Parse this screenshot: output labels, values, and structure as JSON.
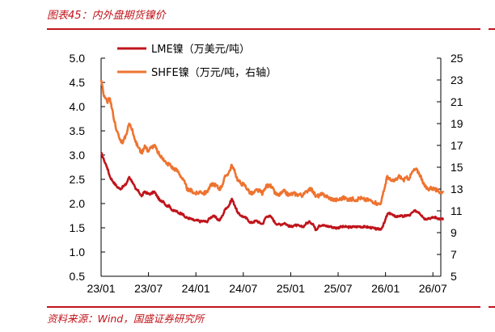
{
  "header": {
    "title": "图表45：内外盘期货镍价"
  },
  "footer": {
    "source": "资料来源：Wind，国盛证券研究所"
  },
  "colors": {
    "accent": "#c0141b",
    "lme": "#c0141b",
    "shfe": "#ee7330"
  },
  "chart_data": {
    "type": "line",
    "x_ticks": [
      "23/01",
      "23/07",
      "24/01",
      "24/07",
      "25/01",
      "25/07",
      "26/01",
      "26/07"
    ],
    "x_range": [
      "23/01",
      "26/08"
    ],
    "ylim_left": [
      0.5,
      5.0
    ],
    "yticks_left": [
      "5.0",
      "4.5",
      "4.0",
      "3.5",
      "3.0",
      "2.5",
      "2.0",
      "1.5",
      "1.0",
      "0.5"
    ],
    "ylim_right": [
      5,
      25
    ],
    "yticks_right": [
      "25",
      "23",
      "21",
      "19",
      "17",
      "15",
      "13",
      "11",
      "9",
      "7",
      "5"
    ],
    "grid": false,
    "legend_position": "top-left",
    "series": [
      {
        "name": "LME镍（万美元/吨）",
        "axis": "left",
        "color": "#c0141b",
        "points": [
          [
            "2023-01-01",
            3.05
          ],
          [
            "2023-01-12",
            2.9
          ],
          [
            "2023-01-24",
            2.75
          ],
          [
            "2023-02-05",
            2.55
          ],
          [
            "2023-02-17",
            2.45
          ],
          [
            "2023-03-01",
            2.35
          ],
          [
            "2023-03-13",
            2.3
          ],
          [
            "2023-03-25",
            2.35
          ],
          [
            "2023-04-06",
            2.4
          ],
          [
            "2023-04-18",
            2.55
          ],
          [
            "2023-04-30",
            2.45
          ],
          [
            "2023-05-12",
            2.3
          ],
          [
            "2023-05-24",
            2.25
          ],
          [
            "2023-06-05",
            2.15
          ],
          [
            "2023-06-17",
            2.25
          ],
          [
            "2023-06-29",
            2.2
          ],
          [
            "2023-07-11",
            2.2
          ],
          [
            "2023-07-23",
            2.25
          ],
          [
            "2023-08-04",
            2.15
          ],
          [
            "2023-08-16",
            2.05
          ],
          [
            "2023-08-28",
            2.05
          ],
          [
            "2023-09-09",
            1.95
          ],
          [
            "2023-09-21",
            1.95
          ],
          [
            "2023-10-03",
            1.85
          ],
          [
            "2023-10-15",
            1.85
          ],
          [
            "2023-10-27",
            1.8
          ],
          [
            "2023-11-08",
            1.8
          ],
          [
            "2023-11-20",
            1.72
          ],
          [
            "2023-12-02",
            1.7
          ],
          [
            "2023-12-14",
            1.68
          ],
          [
            "2023-12-26",
            1.65
          ],
          [
            "2024-01-07",
            1.65
          ],
          [
            "2024-01-19",
            1.63
          ],
          [
            "2024-01-31",
            1.64
          ],
          [
            "2024-02-12",
            1.62
          ],
          [
            "2024-02-24",
            1.7
          ],
          [
            "2024-03-07",
            1.75
          ],
          [
            "2024-03-19",
            1.7
          ],
          [
            "2024-03-31",
            1.65
          ],
          [
            "2024-04-12",
            1.75
          ],
          [
            "2024-04-24",
            1.9
          ],
          [
            "2024-05-06",
            1.95
          ],
          [
            "2024-05-18",
            2.1
          ],
          [
            "2024-05-30",
            1.95
          ],
          [
            "2024-06-11",
            1.8
          ],
          [
            "2024-06-23",
            1.75
          ],
          [
            "2024-07-05",
            1.72
          ],
          [
            "2024-07-17",
            1.68
          ],
          [
            "2024-07-29",
            1.6
          ],
          [
            "2024-08-10",
            1.62
          ],
          [
            "2024-08-22",
            1.65
          ],
          [
            "2024-09-03",
            1.6
          ],
          [
            "2024-09-15",
            1.58
          ],
          [
            "2024-09-27",
            1.72
          ],
          [
            "2024-10-09",
            1.75
          ],
          [
            "2024-10-21",
            1.7
          ],
          [
            "2024-11-02",
            1.6
          ],
          [
            "2024-11-14",
            1.57
          ],
          [
            "2024-11-26",
            1.57
          ],
          [
            "2024-12-08",
            1.6
          ],
          [
            "2024-12-20",
            1.55
          ],
          [
            "2025-01-01",
            1.52
          ],
          [
            "2025-01-13",
            1.55
          ],
          [
            "2025-01-25",
            1.55
          ],
          [
            "2025-02-06",
            1.53
          ],
          [
            "2025-02-18",
            1.52
          ],
          [
            "2025-03-02",
            1.6
          ],
          [
            "2025-03-14",
            1.62
          ],
          [
            "2025-03-26",
            1.58
          ],
          [
            "2025-04-07",
            1.45
          ],
          [
            "2025-04-19",
            1.55
          ],
          [
            "2025-05-01",
            1.55
          ],
          [
            "2025-05-13",
            1.54
          ],
          [
            "2025-05-25",
            1.53
          ],
          [
            "2025-06-06",
            1.52
          ],
          [
            "2025-06-18",
            1.5
          ],
          [
            "2025-06-30",
            1.5
          ],
          [
            "2025-07-12",
            1.52
          ],
          [
            "2025-07-24",
            1.52
          ],
          [
            "2025-08-05",
            1.52
          ],
          [
            "2025-08-17",
            1.51
          ],
          [
            "2025-08-29",
            1.52
          ],
          [
            "2025-09-10",
            1.52
          ],
          [
            "2025-09-22",
            1.53
          ],
          [
            "2025-10-04",
            1.52
          ],
          [
            "2025-10-16",
            1.52
          ],
          [
            "2025-10-28",
            1.51
          ],
          [
            "2025-11-09",
            1.5
          ],
          [
            "2025-11-21",
            1.48
          ],
          [
            "2025-12-03",
            1.47
          ],
          [
            "2025-12-15",
            1.48
          ],
          [
            "2025-12-27",
            1.6
          ],
          [
            "2026-01-08",
            1.78
          ],
          [
            "2026-01-20",
            1.8
          ],
          [
            "2026-02-01",
            1.75
          ],
          [
            "2026-02-13",
            1.73
          ],
          [
            "2026-02-25",
            1.75
          ],
          [
            "2026-03-09",
            1.73
          ],
          [
            "2026-03-21",
            1.76
          ],
          [
            "2026-04-02",
            1.75
          ],
          [
            "2026-04-14",
            1.82
          ],
          [
            "2026-04-26",
            1.85
          ],
          [
            "2026-05-08",
            1.82
          ],
          [
            "2026-05-20",
            1.75
          ],
          [
            "2026-06-01",
            1.68
          ],
          [
            "2026-06-13",
            1.7
          ],
          [
            "2026-06-25",
            1.7
          ],
          [
            "2026-07-07",
            1.72
          ],
          [
            "2026-07-19",
            1.7
          ],
          [
            "2026-07-31",
            1.68
          ],
          [
            "2026-08-12",
            1.68
          ]
        ]
      },
      {
        "name": "SHFE镍（万元/吨，右轴）",
        "axis": "right",
        "color": "#ee7330",
        "points": [
          [
            "2023-01-01",
            23.0
          ],
          [
            "2023-01-12",
            21.5
          ],
          [
            "2023-01-24",
            21.0
          ],
          [
            "2023-02-05",
            21.3
          ],
          [
            "2023-02-17",
            19.8
          ],
          [
            "2023-03-01",
            18.3
          ],
          [
            "2023-03-13",
            17.5
          ],
          [
            "2023-03-25",
            17.3
          ],
          [
            "2023-04-06",
            18.0
          ],
          [
            "2023-04-18",
            19.0
          ],
          [
            "2023-04-30",
            18.5
          ],
          [
            "2023-05-12",
            17.3
          ],
          [
            "2023-05-24",
            16.8
          ],
          [
            "2023-06-05",
            16.3
          ],
          [
            "2023-06-17",
            17.0
          ],
          [
            "2023-06-29",
            16.5
          ],
          [
            "2023-07-11",
            16.8
          ],
          [
            "2023-07-23",
            17.0
          ],
          [
            "2023-08-04",
            16.5
          ],
          [
            "2023-08-16",
            16.0
          ],
          [
            "2023-08-28",
            15.8
          ],
          [
            "2023-09-09",
            15.3
          ],
          [
            "2023-09-21",
            15.3
          ],
          [
            "2023-10-03",
            14.9
          ],
          [
            "2023-10-15",
            14.8
          ],
          [
            "2023-10-27",
            14.5
          ],
          [
            "2023-11-08",
            14.0
          ],
          [
            "2023-11-20",
            13.5
          ],
          [
            "2023-12-02",
            12.8
          ],
          [
            "2023-12-14",
            12.9
          ],
          [
            "2023-12-26",
            12.6
          ],
          [
            "2024-01-07",
            12.6
          ],
          [
            "2024-01-19",
            12.8
          ],
          [
            "2024-01-31",
            12.6
          ],
          [
            "2024-02-12",
            12.7
          ],
          [
            "2024-02-24",
            13.2
          ],
          [
            "2024-03-07",
            13.5
          ],
          [
            "2024-03-19",
            13.3
          ],
          [
            "2024-03-31",
            13.0
          ],
          [
            "2024-04-12",
            13.4
          ],
          [
            "2024-04-24",
            14.2
          ],
          [
            "2024-05-06",
            14.5
          ],
          [
            "2024-05-18",
            15.2
          ],
          [
            "2024-05-30",
            14.5
          ],
          [
            "2024-06-11",
            13.8
          ],
          [
            "2024-06-23",
            13.5
          ],
          [
            "2024-07-05",
            13.4
          ],
          [
            "2024-07-17",
            13.0
          ],
          [
            "2024-07-29",
            12.6
          ],
          [
            "2024-08-10",
            12.6
          ],
          [
            "2024-08-22",
            12.9
          ],
          [
            "2024-09-03",
            12.8
          ],
          [
            "2024-09-15",
            12.6
          ],
          [
            "2024-09-27",
            13.2
          ],
          [
            "2024-10-09",
            13.4
          ],
          [
            "2024-10-21",
            13.1
          ],
          [
            "2024-11-02",
            12.6
          ],
          [
            "2024-11-14",
            12.4
          ],
          [
            "2024-11-26",
            12.6
          ],
          [
            "2024-12-08",
            12.8
          ],
          [
            "2024-12-20",
            12.5
          ],
          [
            "2025-01-01",
            12.5
          ],
          [
            "2025-01-13",
            12.6
          ],
          [
            "2025-01-25",
            12.5
          ],
          [
            "2025-02-06",
            12.5
          ],
          [
            "2025-02-18",
            12.4
          ],
          [
            "2025-03-02",
            12.8
          ],
          [
            "2025-03-14",
            13.1
          ],
          [
            "2025-03-26",
            12.8
          ],
          [
            "2025-04-07",
            12.3
          ],
          [
            "2025-04-19",
            12.4
          ],
          [
            "2025-05-01",
            12.5
          ],
          [
            "2025-05-13",
            12.4
          ],
          [
            "2025-05-25",
            12.2
          ],
          [
            "2025-06-06",
            12.1
          ],
          [
            "2025-06-18",
            12.0
          ],
          [
            "2025-06-30",
            12.0
          ],
          [
            "2025-07-12",
            12.1
          ],
          [
            "2025-07-24",
            12.2
          ],
          [
            "2025-08-05",
            12.1
          ],
          [
            "2025-08-17",
            12.0
          ],
          [
            "2025-08-29",
            12.1
          ],
          [
            "2025-09-10",
            12.0
          ],
          [
            "2025-09-22",
            12.2
          ],
          [
            "2025-10-04",
            12.1
          ],
          [
            "2025-10-16",
            12.0
          ],
          [
            "2025-10-28",
            12.0
          ],
          [
            "2025-11-09",
            11.9
          ],
          [
            "2025-11-21",
            11.8
          ],
          [
            "2025-12-03",
            11.6
          ],
          [
            "2025-12-15",
            11.8
          ],
          [
            "2025-12-27",
            13.0
          ],
          [
            "2026-01-08",
            14.2
          ],
          [
            "2026-01-20",
            13.8
          ],
          [
            "2026-02-01",
            13.7
          ],
          [
            "2026-02-13",
            13.9
          ],
          [
            "2026-02-25",
            14.2
          ],
          [
            "2026-03-09",
            13.8
          ],
          [
            "2026-03-21",
            14.0
          ],
          [
            "2026-04-02",
            14.0
          ],
          [
            "2026-04-14",
            14.6
          ],
          [
            "2026-04-26",
            14.8
          ],
          [
            "2026-05-08",
            14.5
          ],
          [
            "2026-05-20",
            13.9
          ],
          [
            "2026-06-01",
            13.2
          ],
          [
            "2026-06-13",
            13.0
          ],
          [
            "2026-06-25",
            13.1
          ],
          [
            "2026-07-07",
            13.0
          ],
          [
            "2026-07-19",
            12.8
          ],
          [
            "2026-07-31",
            12.7
          ],
          [
            "2026-08-12",
            12.7
          ]
        ]
      }
    ]
  }
}
